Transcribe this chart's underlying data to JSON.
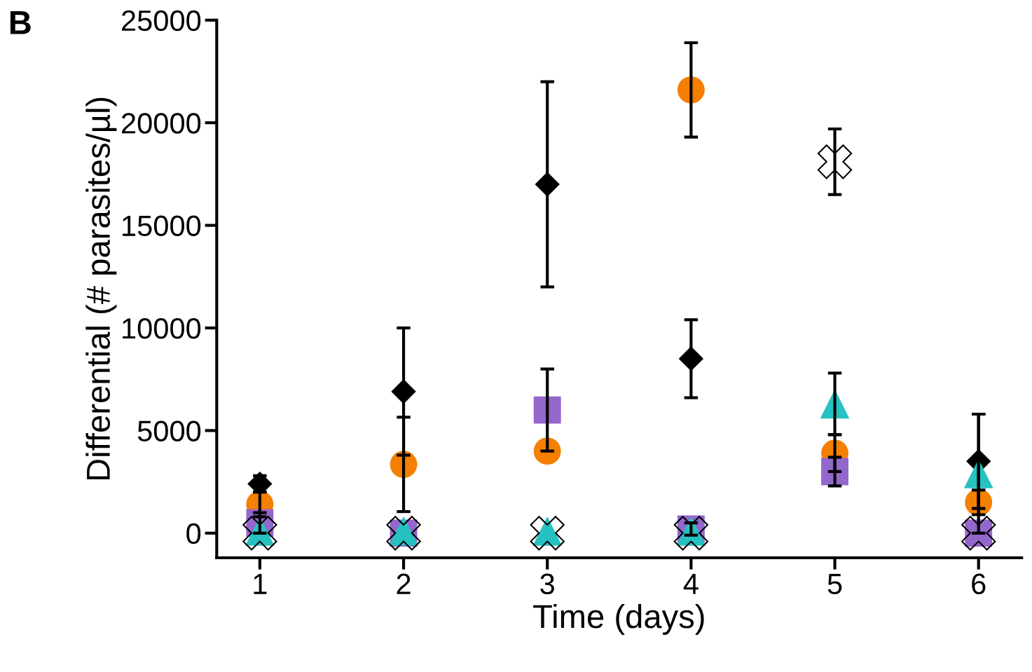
{
  "chart_data": {
    "type": "scatter",
    "xlabel": "Time (days)",
    "ylabel": "Differential (# parasites/µl)",
    "annotations": [
      "B"
    ],
    "x": [
      1,
      2,
      3,
      4,
      5,
      6
    ],
    "xlim": [
      0.7,
      6.3
    ],
    "xticks": [
      1,
      2,
      3,
      4,
      5,
      6
    ],
    "ylim": [
      -1200,
      25000
    ],
    "yticks": [
      0,
      5000,
      10000,
      15000,
      20000,
      25000
    ],
    "grid": false,
    "legend": false,
    "series": [
      {
        "color": "#000000",
        "marker": "diamond",
        "values": [
          2400,
          6900,
          17000,
          8500,
          null,
          3500
        ],
        "errors": [
          400,
          3100,
          5000,
          1900,
          null,
          2300
        ]
      },
      {
        "color": "#f57f00",
        "marker": "circle",
        "values": [
          1400,
          3350,
          4000,
          21600,
          3900,
          1500
        ],
        "errors": [
          600,
          2300,
          null,
          2300,
          900,
          600
        ]
      },
      {
        "color": "#9467cc",
        "marker": "square",
        "values": [
          500,
          0,
          6000,
          200,
          3000,
          0
        ],
        "errors": [
          500,
          null,
          2000,
          300,
          700,
          null
        ]
      },
      {
        "color": "#26c2c2",
        "marker": "triangle",
        "values": [
          100,
          100,
          100,
          100,
          6300,
          2900
        ],
        "errors": [
          null,
          null,
          null,
          null,
          1500,
          2900
        ]
      },
      {
        "color": "#000000",
        "marker": "cross",
        "values": [
          0,
          0,
          0,
          0,
          18100,
          0
        ],
        "errors": [
          null,
          null,
          null,
          null,
          1600,
          null
        ]
      }
    ]
  }
}
